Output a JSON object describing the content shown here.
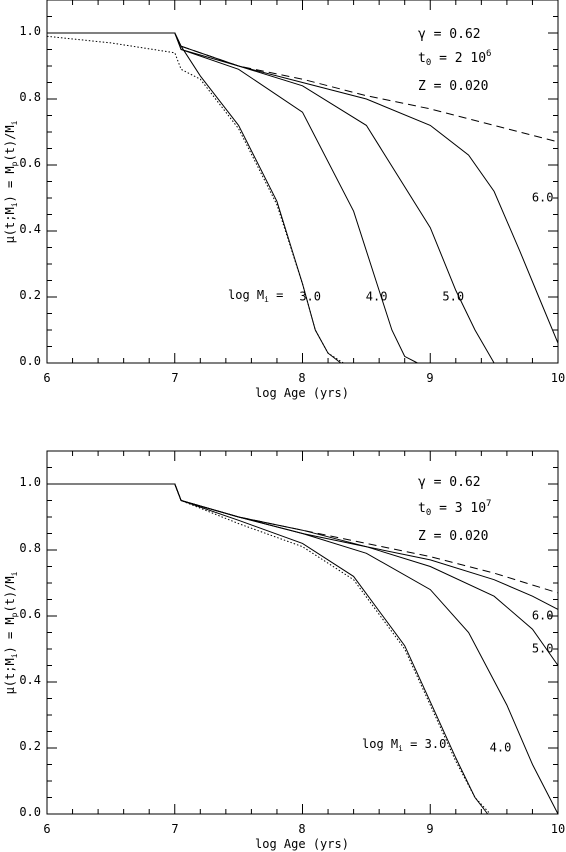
{
  "chart_data": [
    {
      "type": "line",
      "xlabel": "log Age (yrs)",
      "ylabel": "μ(t;M_i) = M_p(t)/M_i",
      "xlim": [
        6,
        10
      ],
      "ylim": [
        0.0,
        1.1
      ],
      "x_ticks": [
        "6",
        "7",
        "8",
        "9",
        "10"
      ],
      "y_ticks": [
        "0.0",
        "0.2",
        "0.4",
        "0.6",
        "0.8",
        "1.0"
      ],
      "grid": false,
      "annotations": {
        "gamma": "γ = 0.62",
        "t0_prefix": "t",
        "t0_sub": "0",
        "t0_value": " = 2 10",
        "t0_exp": "6",
        "Z": "Z = 0.020",
        "mass_prefix": "log M",
        "mass_sub": "i",
        "mass_suffix": " = "
      },
      "series": [
        {
          "label": "3.0",
          "style": "solid",
          "x": [
            6.0,
            6.5,
            7.0,
            7.05,
            7.2,
            7.5,
            7.8,
            8.0,
            8.1,
            8.2,
            8.3
          ],
          "y": [
            1.0,
            1.0,
            1.0,
            0.96,
            0.87,
            0.72,
            0.49,
            0.24,
            0.1,
            0.03,
            0.0
          ]
        },
        {
          "label": "3.0",
          "style": "dotted",
          "x": [
            6.0,
            6.5,
            7.0,
            7.05,
            7.2,
            7.5,
            7.8,
            8.0,
            8.1,
            8.2,
            8.32
          ],
          "y": [
            0.99,
            0.97,
            0.94,
            0.89,
            0.86,
            0.71,
            0.48,
            0.24,
            0.1,
            0.03,
            0.0
          ]
        },
        {
          "label": "4.0",
          "style": "solid",
          "x": [
            6.0,
            6.5,
            7.0,
            7.05,
            7.5,
            8.0,
            8.4,
            8.6,
            8.7,
            8.8,
            8.9
          ],
          "y": [
            1.0,
            1.0,
            1.0,
            0.95,
            0.89,
            0.76,
            0.46,
            0.22,
            0.1,
            0.02,
            0.0
          ]
        },
        {
          "label": "5.0",
          "style": "solid",
          "x": [
            6.0,
            6.5,
            7.0,
            7.05,
            7.5,
            8.0,
            8.5,
            9.0,
            9.2,
            9.35,
            9.5
          ],
          "y": [
            1.0,
            1.0,
            1.0,
            0.95,
            0.9,
            0.84,
            0.72,
            0.41,
            0.22,
            0.1,
            0.0
          ]
        },
        {
          "label": "6.0",
          "style": "solid",
          "x": [
            6.0,
            6.5,
            7.0,
            7.05,
            7.5,
            8.0,
            8.5,
            9.0,
            9.3,
            9.5,
            9.7,
            9.85,
            10.0
          ],
          "y": [
            1.0,
            1.0,
            1.0,
            0.96,
            0.9,
            0.85,
            0.8,
            0.72,
            0.63,
            0.52,
            0.34,
            0.2,
            0.06
          ]
        },
        {
          "label": "",
          "style": "dashed",
          "x": [
            6.0,
            6.5,
            7.0,
            7.05,
            7.5,
            8.0,
            8.5,
            9.0,
            9.5,
            10.0
          ],
          "y": [
            1.0,
            1.0,
            1.0,
            0.96,
            0.9,
            0.86,
            0.81,
            0.77,
            0.72,
            0.67
          ]
        }
      ],
      "curve_labels": [
        {
          "text": "3.0",
          "x": 8.06,
          "y": 0.19
        },
        {
          "text": "4.0",
          "x": 8.58,
          "y": 0.19
        },
        {
          "text": "5.0",
          "x": 9.18,
          "y": 0.19
        },
        {
          "text": "6.0",
          "x": 9.88,
          "y": 0.49
        }
      ]
    },
    {
      "type": "line",
      "xlabel": "log Age (yrs)",
      "ylabel": "μ(t;M_i) = M_p(t)/M_i",
      "xlim": [
        6,
        10
      ],
      "ylim": [
        0.0,
        1.1
      ],
      "x_ticks": [
        "6",
        "7",
        "8",
        "9",
        "10"
      ],
      "y_ticks": [
        "0.0",
        "0.2",
        "0.4",
        "0.6",
        "0.8",
        "1.0"
      ],
      "grid": false,
      "annotations": {
        "gamma": "γ = 0.62",
        "t0_prefix": "t",
        "t0_sub": "0",
        "t0_value": " = 3 10",
        "t0_exp": "7",
        "Z": "Z = 0.020",
        "mass_prefix": "log M",
        "mass_sub": "i",
        "mass_suffix": " = 3.0"
      },
      "series": [
        {
          "label": "3.0",
          "style": "solid",
          "x": [
            6.0,
            6.5,
            7.0,
            7.05,
            7.5,
            8.0,
            8.4,
            8.8,
            9.0,
            9.2,
            9.35,
            9.45
          ],
          "y": [
            1.0,
            1.0,
            1.0,
            0.95,
            0.89,
            0.82,
            0.72,
            0.51,
            0.34,
            0.17,
            0.05,
            0.0
          ]
        },
        {
          "label": "3.0",
          "style": "dotted",
          "x": [
            6.0,
            6.5,
            7.0,
            7.05,
            7.5,
            8.0,
            8.4,
            8.8,
            9.0,
            9.2,
            9.35,
            9.47
          ],
          "y": [
            1.0,
            1.0,
            1.0,
            0.95,
            0.88,
            0.81,
            0.71,
            0.5,
            0.33,
            0.16,
            0.05,
            0.0
          ]
        },
        {
          "label": "4.0",
          "style": "solid",
          "x": [
            6.0,
            6.5,
            7.0,
            7.05,
            7.5,
            8.0,
            8.5,
            9.0,
            9.3,
            9.6,
            9.8,
            10.0
          ],
          "y": [
            1.0,
            1.0,
            1.0,
            0.95,
            0.9,
            0.85,
            0.79,
            0.68,
            0.55,
            0.33,
            0.15,
            0.0
          ]
        },
        {
          "label": "5.0",
          "style": "solid",
          "x": [
            6.0,
            6.5,
            7.0,
            7.05,
            7.5,
            8.0,
            8.5,
            9.0,
            9.5,
            9.8,
            10.0
          ],
          "y": [
            1.0,
            1.0,
            1.0,
            0.95,
            0.9,
            0.85,
            0.81,
            0.75,
            0.66,
            0.56,
            0.45
          ]
        },
        {
          "label": "6.0",
          "style": "solid",
          "x": [
            6.0,
            6.5,
            7.0,
            7.05,
            7.5,
            8.0,
            8.5,
            9.0,
            9.5,
            9.8,
            10.0
          ],
          "y": [
            1.0,
            1.0,
            1.0,
            0.95,
            0.9,
            0.86,
            0.81,
            0.77,
            0.71,
            0.66,
            0.62
          ]
        },
        {
          "label": "",
          "style": "dashed",
          "x": [
            6.0,
            6.5,
            7.0,
            7.05,
            7.5,
            8.0,
            8.5,
            9.0,
            9.5,
            10.0
          ],
          "y": [
            1.0,
            1.0,
            1.0,
            0.95,
            0.9,
            0.86,
            0.82,
            0.78,
            0.73,
            0.67
          ]
        }
      ],
      "curve_labels": [
        {
          "text": "4.0",
          "x": 9.55,
          "y": 0.19
        },
        {
          "text": "5.0",
          "x": 9.88,
          "y": 0.49
        },
        {
          "text": "6.0",
          "x": 9.88,
          "y": 0.59
        }
      ]
    }
  ]
}
